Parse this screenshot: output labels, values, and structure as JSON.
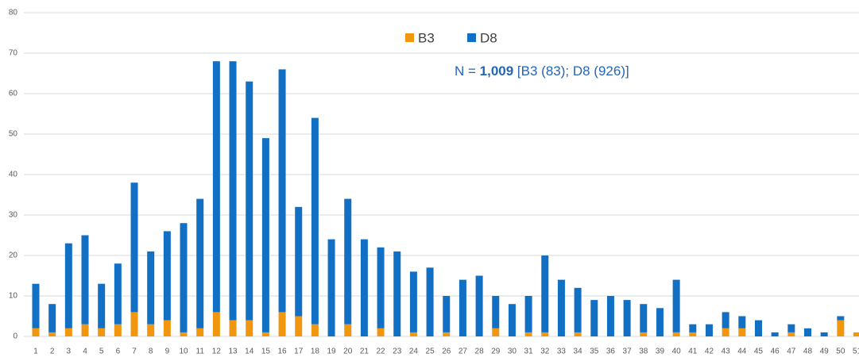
{
  "chart_data": {
    "type": "bar",
    "stacked": true,
    "categories": [
      "1",
      "2",
      "3",
      "4",
      "5",
      "6",
      "7",
      "8",
      "9",
      "10",
      "11",
      "12",
      "13",
      "14",
      "15",
      "16",
      "17",
      "18",
      "19",
      "20",
      "21",
      "22",
      "23",
      "24",
      "25",
      "26",
      "27",
      "28",
      "29",
      "30",
      "31",
      "32",
      "33",
      "34",
      "35",
      "36",
      "37",
      "38",
      "39",
      "40",
      "41",
      "42",
      "43",
      "44",
      "45",
      "46",
      "47",
      "48",
      "49",
      "50",
      "51"
    ],
    "series": [
      {
        "name": "B3",
        "color": "#f0960f",
        "values": [
          2,
          1,
          2,
          3,
          2,
          3,
          6,
          3,
          4,
          1,
          2,
          6,
          4,
          4,
          1,
          6,
          5,
          3,
          0,
          3,
          0,
          2,
          0,
          1,
          0,
          1,
          0,
          0,
          2,
          0,
          1,
          1,
          0,
          1,
          0,
          0,
          0,
          1,
          0,
          1,
          1,
          0,
          2,
          2,
          0,
          0,
          1,
          0,
          0,
          4,
          1
        ]
      },
      {
        "name": "D8",
        "color": "#1170c4",
        "values": [
          11,
          7,
          21,
          22,
          11,
          15,
          32,
          18,
          22,
          27,
          32,
          62,
          64,
          59,
          48,
          60,
          27,
          51,
          24,
          31,
          24,
          20,
          21,
          15,
          17,
          9,
          14,
          15,
          8,
          8,
          9,
          19,
          14,
          11,
          9,
          10,
          9,
          7,
          7,
          13,
          2,
          3,
          4,
          3,
          4,
          1,
          2,
          2,
          1,
          1,
          0
        ]
      }
    ],
    "ylim": [
      0,
      80
    ],
    "yticks": [
      0,
      10,
      20,
      30,
      40,
      50,
      60,
      70,
      80
    ],
    "grid": true,
    "legend": "top",
    "annotation": [
      "N = ",
      "1,009",
      " [B3 (83); D8 (926)]"
    ]
  }
}
